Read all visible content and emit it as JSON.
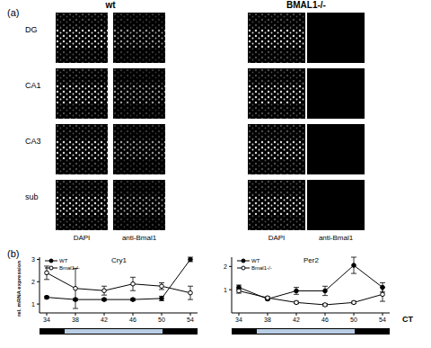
{
  "panel_a": {
    "label": "(a)",
    "groups": [
      "wt",
      "BMAL1-/-"
    ],
    "rows": [
      "DG",
      "CA1",
      "CA3",
      "sub"
    ],
    "columns": [
      "DAPI",
      "anti-Bmal1"
    ]
  },
  "panel_b": {
    "label": "(b)",
    "y_label": "rel. mRNA expression",
    "x_label": "CT"
  },
  "chart_data": [
    {
      "type": "line",
      "title": "Cry1",
      "x": [
        34,
        38,
        42,
        46,
        50,
        54
      ],
      "xlim": [
        33,
        55
      ],
      "xticks": [
        34,
        38,
        42,
        46,
        50,
        54
      ],
      "ylim": [
        0.6,
        3.1
      ],
      "yticks": [
        1,
        2,
        3
      ],
      "series": [
        {
          "name": "WT",
          "color": "#000000",
          "marker": "filled_circle",
          "values": [
            1.3,
            1.2,
            1.2,
            1.2,
            1.25,
            3.0
          ],
          "errors": [
            0.05,
            0.05,
            0.05,
            0.05,
            0.1,
            0.1
          ]
        },
        {
          "name": "Bmal1-/-",
          "color": "#000000",
          "marker": "open_circle",
          "values": [
            2.4,
            1.7,
            1.6,
            1.9,
            1.8,
            1.5
          ],
          "errors": [
            0.3,
            0.9,
            0.2,
            0.3,
            0.15,
            0.3
          ]
        }
      ]
    },
    {
      "type": "line",
      "title": "Per2",
      "x": [
        34,
        38,
        42,
        46,
        50,
        54
      ],
      "xlim": [
        33,
        55
      ],
      "xticks": [
        34,
        38,
        42,
        46,
        50,
        54
      ],
      "ylim": [
        0,
        2.4
      ],
      "yticks": [
        1,
        2
      ],
      "series": [
        {
          "name": "WT",
          "color": "#000000",
          "marker": "filled_circle",
          "values": [
            1.1,
            0.6,
            0.95,
            0.95,
            2.05,
            1.1
          ],
          "errors": [
            0.1,
            0.05,
            0.15,
            0.2,
            0.35,
            0.2
          ]
        },
        {
          "name": "Bmal1-/-",
          "color": "#000000",
          "marker": "open_circle",
          "values": [
            0.95,
            0.65,
            0.45,
            0.35,
            0.45,
            0.8
          ],
          "errors": [
            0.1,
            0.05,
            0.05,
            0.05,
            0.05,
            0.3
          ]
        }
      ]
    }
  ]
}
